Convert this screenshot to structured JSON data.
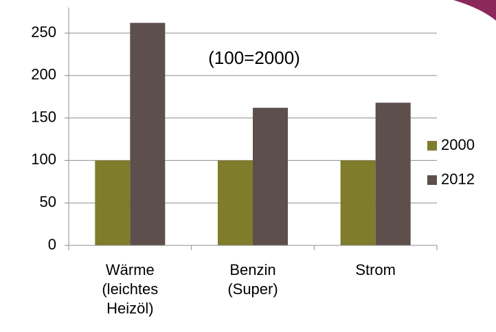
{
  "chart_data": {
    "type": "bar",
    "annotation": "(100=2000)",
    "categories": [
      "Wärme (leichtes Heizöl)",
      "Benzin (Super)",
      "Strom"
    ],
    "series": [
      {
        "name": "2000",
        "color": "#7f7c2b",
        "values": [
          100,
          100,
          100
        ]
      },
      {
        "name": "2012",
        "color": "#5d4f4c",
        "values": [
          262,
          162,
          168
        ]
      }
    ],
    "ylim": [
      0,
      280
    ],
    "yticks": [
      0,
      50,
      100,
      150,
      200,
      250
    ],
    "grid": true,
    "legend": "right"
  }
}
